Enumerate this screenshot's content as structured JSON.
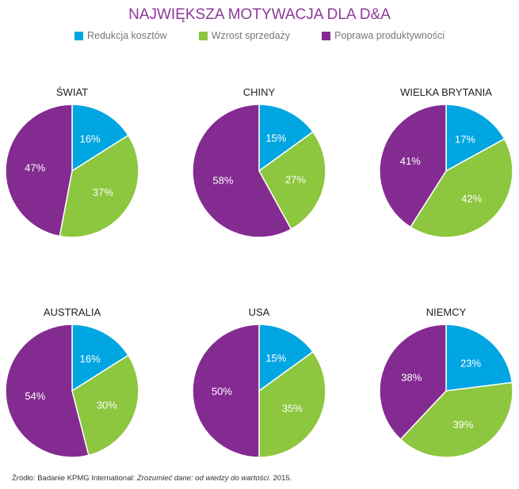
{
  "chart_data": {
    "type": "pie",
    "title": "NAJWIĘKSZA MOTYWACJA DLA D&A",
    "legend": [
      {
        "name": "Redukcja kosztów",
        "color": "#00a6e2"
      },
      {
        "name": "Wzrost sprzedaży",
        "color": "#8dc63f"
      },
      {
        "name": "Poprawa produktywności",
        "color": "#842b91"
      }
    ],
    "legend_placement": "top",
    "charts": [
      {
        "title": "ŚWIAT",
        "values": [
          16,
          37,
          47
        ]
      },
      {
        "title": "CHINY",
        "values": [
          15,
          27,
          58
        ]
      },
      {
        "title": "WIELKA BRYTANIA",
        "values": [
          17,
          42,
          41
        ]
      },
      {
        "title": "AUSTRALIA",
        "values": [
          16,
          30,
          54
        ]
      },
      {
        "title": "USA",
        "values": [
          15,
          35,
          50
        ]
      },
      {
        "title": "NIEMCY",
        "values": [
          23,
          39,
          38
        ]
      }
    ]
  },
  "source": {
    "prefix": "Źródło: Badanie KPMG International: ",
    "title": "Zrozumieć dane: od wiedzy do wartości",
    "suffix": ". 2015."
  }
}
